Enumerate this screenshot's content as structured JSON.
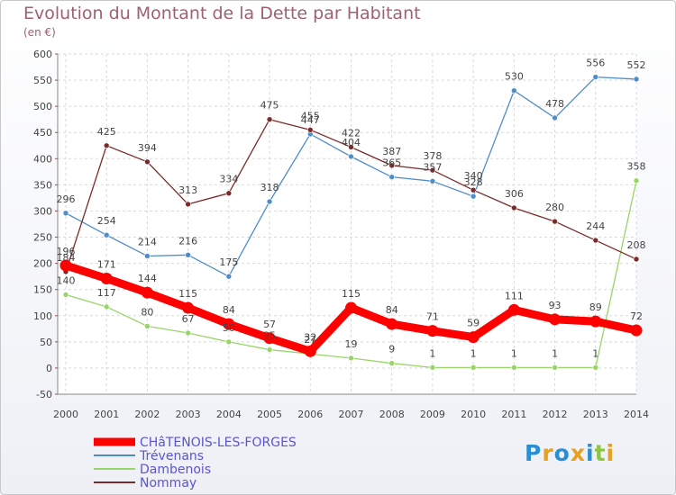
{
  "title": "Evolution du Montant de la Dette par Habitant",
  "subtitle": "(en €)",
  "logo": "Proxiti",
  "chart_data": {
    "type": "line",
    "title": "Evolution du Montant de la Dette par Habitant",
    "ylabel": "(en €)",
    "xlabel": "",
    "x": [
      "2000",
      "2001",
      "2002",
      "2003",
      "2004",
      "2005",
      "2006",
      "2007",
      "2008",
      "2009",
      "2010",
      "2011",
      "2012",
      "2013",
      "2014"
    ],
    "ylim": [
      -50,
      600
    ],
    "yticks": [
      -50,
      0,
      50,
      100,
      150,
      200,
      250,
      300,
      350,
      400,
      450,
      500,
      550,
      600
    ],
    "grid": true,
    "legend": "bottom-left",
    "series": [
      {
        "name": "CHâTENOIS-LES-FORGES",
        "color": "#ff0000",
        "values": [
          196,
          171,
          144,
          115,
          84,
          57,
          32,
          115,
          84,
          71,
          59,
          111,
          93,
          89,
          72
        ]
      },
      {
        "name": "Trévenans",
        "color": "#4f8dc9",
        "values": [
          296,
          254,
          214,
          216,
          175,
          318,
          447,
          404,
          365,
          357,
          328,
          530,
          478,
          556,
          552
        ]
      },
      {
        "name": "Dambenois",
        "color": "#99d468",
        "values": [
          140,
          117,
          80,
          67,
          50,
          35,
          27,
          19,
          9,
          1,
          1,
          1,
          1,
          1,
          358
        ]
      },
      {
        "name": "Nommay",
        "color": "#7a2a2a",
        "values": [
          184,
          425,
          394,
          313,
          334,
          475,
          455,
          422,
          387,
          378,
          340,
          306,
          280,
          244,
          208
        ]
      }
    ]
  }
}
